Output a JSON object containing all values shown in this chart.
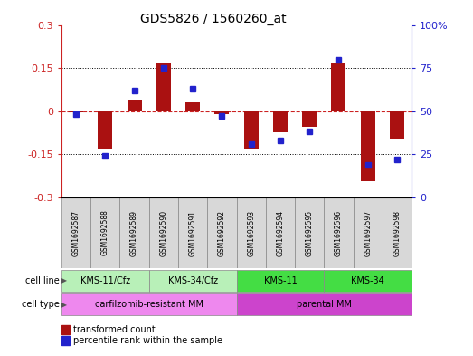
{
  "title": "GDS5826 / 1560260_at",
  "samples": [
    "GSM1692587",
    "GSM1692588",
    "GSM1692589",
    "GSM1692590",
    "GSM1692591",
    "GSM1692592",
    "GSM1692593",
    "GSM1692594",
    "GSM1692595",
    "GSM1692596",
    "GSM1692597",
    "GSM1692598"
  ],
  "transformed_count": [
    -0.005,
    -0.135,
    0.04,
    0.17,
    0.03,
    -0.01,
    -0.13,
    -0.075,
    -0.055,
    0.17,
    -0.245,
    -0.095
  ],
  "percentile_rank": [
    48,
    24,
    62,
    75,
    63,
    47,
    31,
    33,
    38,
    80,
    19,
    22
  ],
  "cell_line_groups": [
    {
      "label": "KMS-11/Cfz",
      "start": 0,
      "end": 2,
      "color": "#b8f0b8"
    },
    {
      "label": "KMS-34/Cfz",
      "start": 3,
      "end": 5,
      "color": "#b8f0b8"
    },
    {
      "label": "KMS-11",
      "start": 6,
      "end": 8,
      "color": "#44dd44"
    },
    {
      "label": "KMS-34",
      "start": 9,
      "end": 11,
      "color": "#44dd44"
    }
  ],
  "cell_type_groups": [
    {
      "label": "carfilzomib-resistant MM",
      "start": 0,
      "end": 5,
      "color": "#ee88ee"
    },
    {
      "label": "parental MM",
      "start": 6,
      "end": 11,
      "color": "#cc44cc"
    }
  ],
  "ylim_left": [
    -0.3,
    0.3
  ],
  "ylim_right": [
    0,
    100
  ],
  "yticks_left": [
    -0.3,
    -0.15,
    0,
    0.15,
    0.3
  ],
  "yticks_right": [
    0,
    25,
    50,
    75,
    100
  ],
  "bar_color": "#aa1111",
  "dot_color": "#2222cc",
  "gsm_bg_color": "#d8d8d8",
  "plot_bg_color": "#ffffff"
}
